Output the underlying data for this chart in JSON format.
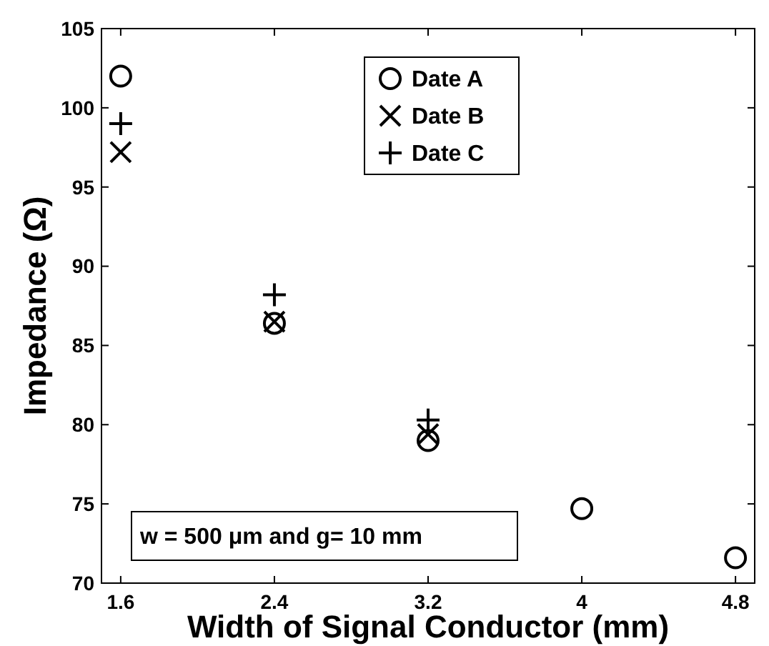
{
  "chart_data": {
    "type": "scatter",
    "xlabel": "Width of Signal Conductor (mm)",
    "ylabel": "Impedance (Ω)",
    "x": [
      1.6,
      2.4,
      3.2,
      4,
      4.8
    ],
    "series": [
      {
        "name": "Date A",
        "color": "#000000",
        "marker": "circle",
        "values": [
          102,
          86.4,
          79,
          74.7,
          71.6
        ]
      },
      {
        "name": "Date B",
        "color": "#000000",
        "marker": "cross",
        "values": [
          97.2,
          86.5,
          79.4,
          null,
          null
        ]
      },
      {
        "name": "Date C",
        "color": "#000000",
        "marker": "plus",
        "values": [
          99,
          88.2,
          80.3,
          null,
          null
        ]
      }
    ],
    "xlim": [
      1.5,
      4.9
    ],
    "xticks": [
      1.6,
      2.4,
      3.2,
      4,
      4.8
    ],
    "ylim": [
      70,
      105
    ],
    "yticks": [
      70,
      75,
      80,
      85,
      90,
      95,
      100,
      105
    ],
    "legend": "top",
    "grid": false,
    "annotations": [
      "w = 500 μm and g= 10 mm"
    ]
  }
}
